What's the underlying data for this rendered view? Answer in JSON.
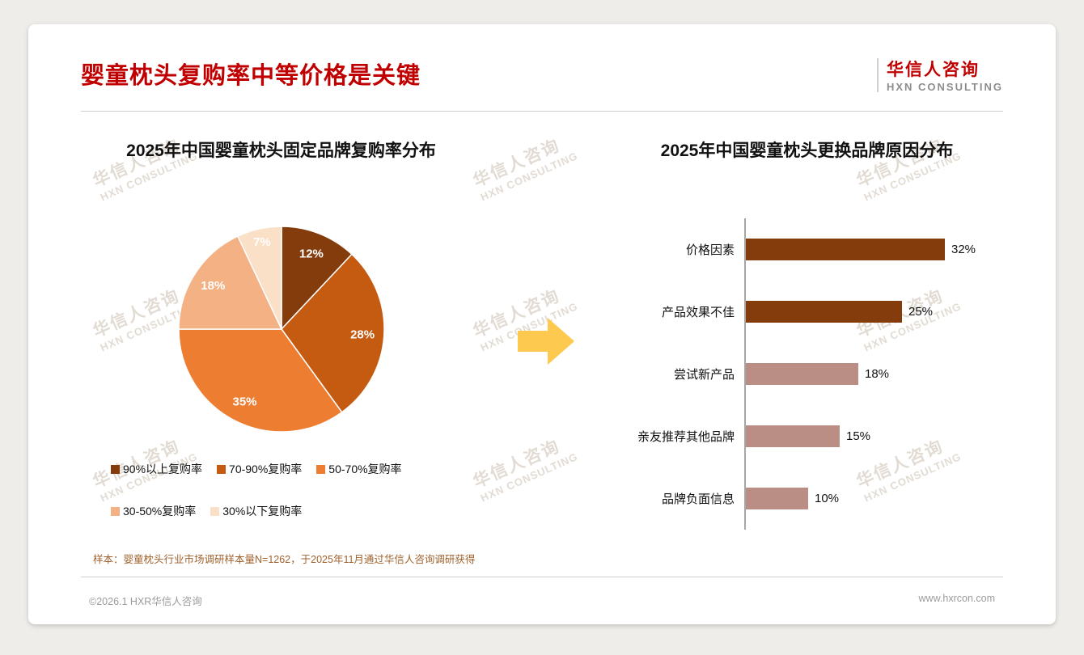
{
  "header": {
    "title": "婴童枕头复购率中等价格是关键",
    "logo_cn": "华信人咨询",
    "logo_en": "HXN CONSULTING"
  },
  "watermark": {
    "cn": "华信人咨询",
    "en": "HXN CONSULTING"
  },
  "icons": {
    "arrow": "arrow-right"
  },
  "colors": {
    "title_red": "#c00000",
    "arrow_gold": "#fdc94f",
    "axis_gray": "#a6a6a6"
  },
  "chart_data": [
    {
      "type": "pie",
      "title": "2025年中国婴童枕头固定品牌复购率分布",
      "labels": [
        "90%以上复购率",
        "70-90%复购率",
        "50-70%复购率",
        "30-50%复购率",
        "30%以下复购率"
      ],
      "values": [
        12,
        28,
        35,
        18,
        7
      ],
      "value_suffix": "%",
      "colors": [
        "#843C0C",
        "#C55A11",
        "#ED7D31",
        "#F4B183",
        "#FBE0C8"
      ],
      "start_angle_deg": 0,
      "direction": "clockwise",
      "legend_position": "bottom"
    },
    {
      "type": "bar",
      "orientation": "horizontal",
      "title": "2025年中国婴童枕头更换品牌原因分布",
      "categories": [
        "价格因素",
        "产品效果不佳",
        "尝试新产品",
        "亲友推荐其他品牌",
        "品牌负面信息"
      ],
      "values": [
        32,
        25,
        18,
        15,
        10
      ],
      "value_suffix": "%",
      "colors": [
        "#843C0C",
        "#843C0C",
        "#BA8E84",
        "#BA8E84",
        "#BA8E84"
      ],
      "xlim": [
        0,
        35
      ],
      "grid": false
    }
  ],
  "footer": {
    "note": "样本：婴童枕头行业市场调研样本量N=1262，于2025年11月通过华信人咨询调研获得",
    "left": "©2026.1 HXR华信人咨询",
    "right": "www.hxrcon.com"
  }
}
